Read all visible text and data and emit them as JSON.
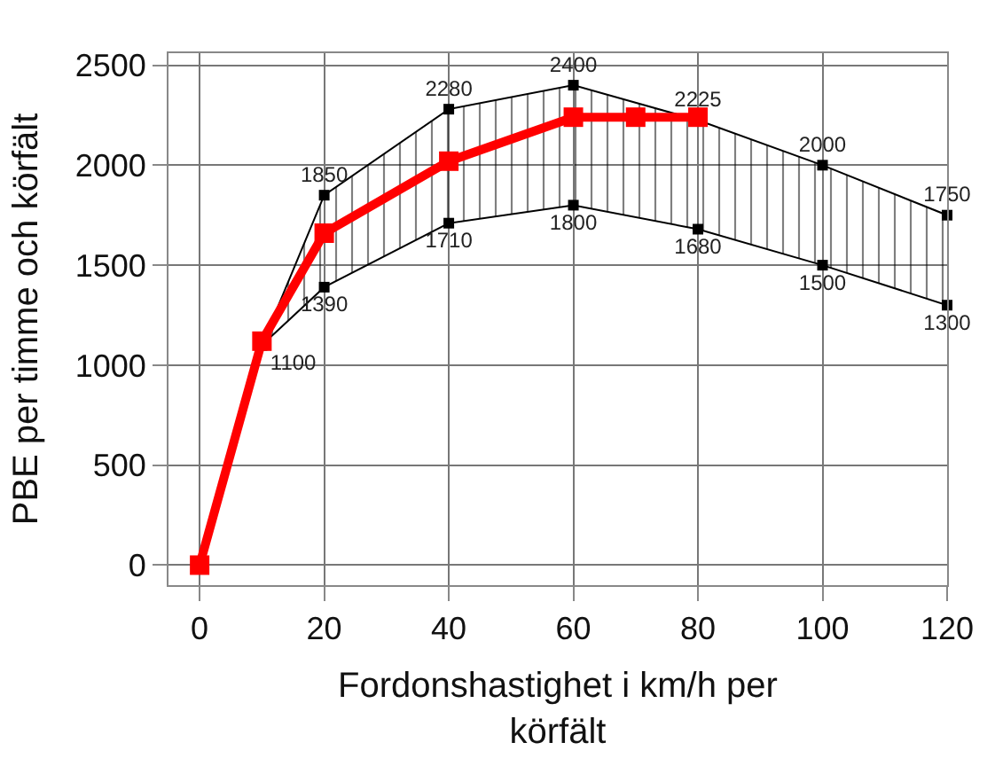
{
  "chart_data": {
    "type": "line",
    "xlabel": "Fordonshastighet i km/h per körfält",
    "ylabel": "PBE per timme och körfält",
    "xlim": [
      -5,
      120
    ],
    "xticks": [
      0,
      20,
      40,
      60,
      80,
      100,
      120
    ],
    "ylim": [
      -100,
      2560
    ],
    "yticks": [
      0,
      500,
      1000,
      1500,
      2000,
      2500
    ],
    "grid": true,
    "marker": "square",
    "line_style": "solid",
    "series": [
      {
        "color": "#000000",
        "x": [
          0,
          10,
          20,
          40,
          60,
          80,
          100,
          120
        ],
        "values": [
          0,
          1100,
          1390,
          1710,
          1800,
          1680,
          1500,
          1300
        ],
        "value_labels": [
          null,
          "1100",
          "1390",
          "1710",
          "1800",
          "1680",
          "1500",
          "1300"
        ]
      },
      {
        "color": "#000000",
        "x": [
          0,
          10,
          20,
          40,
          60,
          80,
          100,
          120
        ],
        "values": [
          0,
          1100,
          1850,
          2280,
          2400,
          2225,
          2000,
          1750
        ],
        "value_labels": [
          null,
          null,
          "1850",
          "2280",
          "2400",
          "2225",
          "2000",
          "1750"
        ],
        "lower": [
          0,
          1100,
          1390,
          1710,
          1800,
          1680,
          1500,
          1300
        ],
        "upper": [
          0,
          1100,
          1850,
          2280,
          2400,
          2225,
          2000,
          1750
        ]
      },
      {
        "color": "#ff0000",
        "x": [
          0,
          10,
          20,
          40,
          60,
          70,
          80
        ],
        "values": [
          0,
          1120,
          1660,
          2020,
          2240,
          2240,
          2240
        ]
      }
    ]
  }
}
